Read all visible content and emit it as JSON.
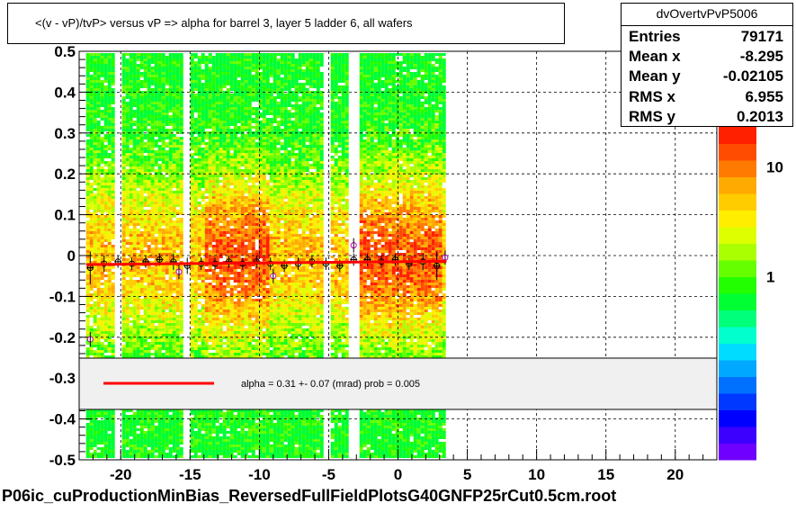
{
  "title": "<(v - vP)/tvP> versus   vP => alpha for barrel 3, layer 5 ladder 6, all wafers",
  "stats": {
    "name": "dvOvertvPvP5006",
    "rows": [
      {
        "key": "Entries",
        "value": "79171"
      },
      {
        "key": "Mean x",
        "value": "-8.295"
      },
      {
        "key": "Mean y",
        "value": "-0.02105"
      },
      {
        "key": "RMS x",
        "value": "6.955"
      },
      {
        "key": "RMS y",
        "value": "0.2013"
      }
    ]
  },
  "fit_legend": "alpha =    0.31 +-  0.07 (mrad) prob = 0.005",
  "footer": "P06ic_cuProductionMinBias_ReversedFullFieldPlotsG40GNFP25rCut0.5cm.root",
  "colors": {
    "fit_line": "#ff0000",
    "profile_marker": "#000000",
    "legend_fill": "#f0f0f0",
    "palette": [
      "#6f00ff",
      "#3c00ff",
      "#0000ff",
      "#0038ff",
      "#0070ff",
      "#00a8ff",
      "#00dcff",
      "#00ffcc",
      "#00ff7a",
      "#00ff33",
      "#22ff00",
      "#66ff00",
      "#aaff00",
      "#ddff00",
      "#ffee00",
      "#ffcc00",
      "#ffaa00",
      "#ff7a00",
      "#ff4c00",
      "#ff2000"
    ]
  },
  "chart_data": {
    "type": "heatmap",
    "xlim": [
      -23,
      23
    ],
    "ylim": [
      -0.5,
      0.5
    ],
    "x_ticks": [
      -20,
      -15,
      -10,
      -5,
      0,
      5,
      10,
      15,
      20
    ],
    "y_ticks": [
      0.5,
      0.4,
      0.3,
      0.2,
      0.1,
      0,
      -0.1,
      -0.2,
      -0.3,
      -0.4,
      -0.5
    ],
    "x_tick_labels": [
      "-20",
      "-15",
      "-10",
      "-5",
      "0",
      "5",
      "10",
      "15",
      "20"
    ],
    "y_tick_labels": [
      "0.5",
      "0.4",
      "0.3",
      "0.2",
      "0.1",
      "0",
      "-0.1",
      "-0.2",
      "-0.3",
      "-0.4",
      "-0.5"
    ],
    "grid": true,
    "data_x_range": [
      -22.5,
      3.2
    ],
    "colorbar_labels": [
      {
        "text": "1",
        "frac": 0.55
      },
      {
        "text": "10",
        "frac": 0.88
      }
    ],
    "colorbar_top_label": "10",
    "profile": {
      "x": [
        -22.2,
        -21.2,
        -20.2,
        -19.2,
        -18.2,
        -17.2,
        -16.2,
        -15.2,
        -14.2,
        -13.2,
        -12.2,
        -11.2,
        -10.2,
        -9.2,
        -8.2,
        -7.2,
        -6.2,
        -5.2,
        -4.2,
        -3.2,
        -2.2,
        -1.2,
        -0.2,
        0.8,
        1.8,
        2.8
      ],
      "y": [
        -0.03,
        -0.02,
        -0.015,
        -0.02,
        -0.015,
        -0.01,
        -0.015,
        -0.025,
        -0.02,
        -0.02,
        -0.015,
        -0.02,
        -0.015,
        -0.02,
        -0.025,
        -0.02,
        -0.015,
        -0.02,
        -0.025,
        -0.01,
        -0.01,
        -0.015,
        -0.01,
        -0.02,
        -0.015,
        -0.025
      ],
      "err": [
        0.04,
        0.02,
        0.015,
        0.015,
        0.015,
        0.015,
        0.02,
        0.02,
        0.015,
        0.015,
        0.015,
        0.015,
        0.015,
        0.015,
        0.015,
        0.015,
        0.015,
        0.015,
        0.015,
        0.015,
        0.015,
        0.015,
        0.015,
        0.015,
        0.02,
        0.035
      ],
      "outliers": [
        {
          "x": -22.2,
          "y": -0.205
        },
        {
          "x": -15.8,
          "y": -0.04
        },
        {
          "x": -9.0,
          "y": -0.05
        },
        {
          "x": -3.2,
          "y": 0.025
        },
        {
          "x": 3.4,
          "y": -0.005
        }
      ]
    },
    "fit_line": {
      "x": [
        -22.5,
        3.5
      ],
      "y": [
        -0.022,
        -0.014
      ]
    }
  }
}
